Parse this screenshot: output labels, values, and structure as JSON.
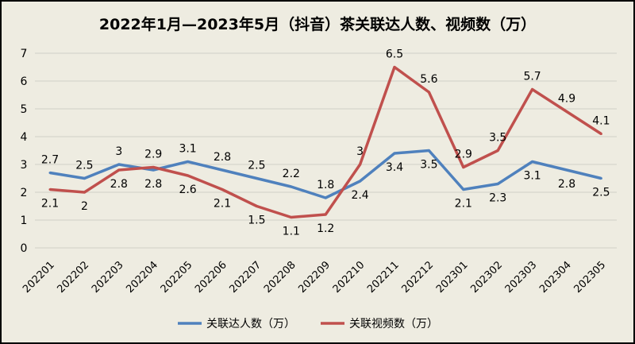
{
  "chart_data": {
    "type": "line",
    "title": "2022年1月—2023年5月（抖音）茶关联达人数、视频数（万）",
    "categories": [
      "202201",
      "202202",
      "202203",
      "202204",
      "202205",
      "202206",
      "202207",
      "202208",
      "202209",
      "202210",
      "202211",
      "202212",
      "202301",
      "202302",
      "202303",
      "202304",
      "202305"
    ],
    "series": [
      {
        "name": "关联达人数（万）",
        "color": "#4f81bd",
        "values": [
          2.7,
          2.5,
          3,
          2.8,
          3.1,
          2.8,
          2.5,
          2.2,
          1.8,
          2.4,
          3.4,
          3.5,
          2.1,
          2.3,
          3.1,
          2.8,
          2.5
        ]
      },
      {
        "name": "关联视频数（万）",
        "color": "#c0504d",
        "values": [
          2.1,
          2,
          2.8,
          2.9,
          2.6,
          2.1,
          1.5,
          1.1,
          1.2,
          3,
          6.5,
          5.6,
          2.9,
          3.5,
          5.7,
          4.9,
          4.1
        ]
      }
    ],
    "ylim": [
      0,
      7
    ],
    "yticks": [
      0,
      1,
      2,
      3,
      4,
      5,
      6,
      7
    ],
    "grid": true,
    "legend": "bottom"
  }
}
